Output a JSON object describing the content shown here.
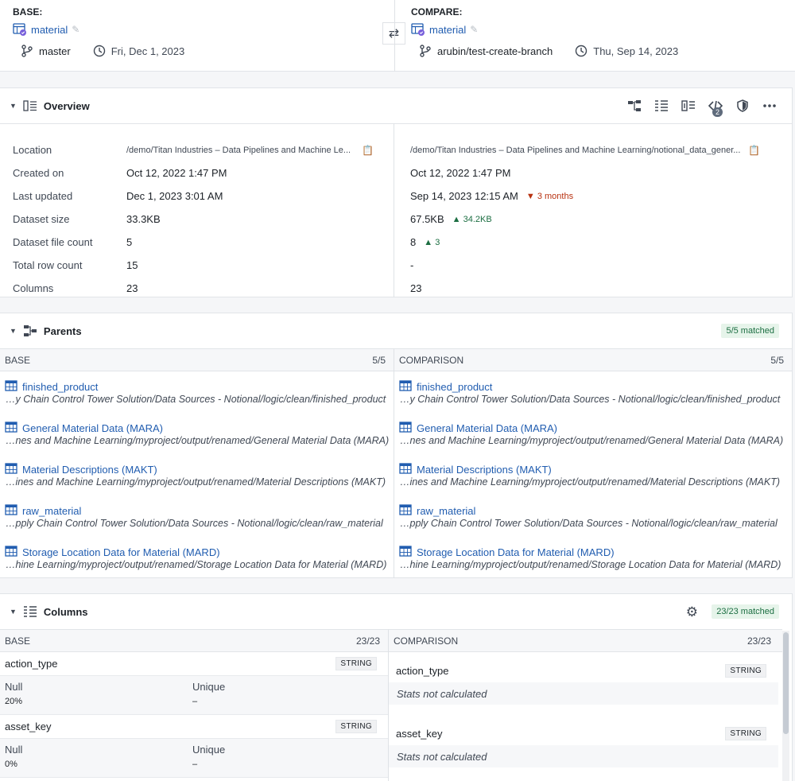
{
  "header": {
    "base": {
      "label": "BASE:",
      "dataset": "material",
      "branch": "master",
      "date": "Fri, Dec 1, 2023"
    },
    "compare": {
      "label": "COMPARE:",
      "dataset": "material",
      "branch": "arubin/test-create-branch",
      "date": "Thu, Sep 14, 2023"
    }
  },
  "overview": {
    "title": "Overview",
    "tool_badge": "2",
    "rows": [
      {
        "label": "Location",
        "base": "/demo/Titan Industries – Data Pipelines and Machine Le...",
        "compare": "/demo/Titan Industries – Data Pipelines and Machine Learning/notional_data_gener...",
        "delta": "",
        "dir": ""
      },
      {
        "label": "Created on",
        "base": "Oct 12, 2022 1:47 PM",
        "compare": "Oct 12, 2022 1:47 PM",
        "delta": "",
        "dir": ""
      },
      {
        "label": "Last updated",
        "base": "Dec 1, 2023 3:01 AM",
        "compare": "Sep 14, 2023 12:15 AM",
        "delta": "3 months",
        "dir": "down"
      },
      {
        "label": "Dataset size",
        "base": "33.3KB",
        "compare": "67.5KB",
        "delta": "34.2KB",
        "dir": "up"
      },
      {
        "label": "Dataset file count",
        "base": "5",
        "compare": "8",
        "delta": "3",
        "dir": "up"
      },
      {
        "label": "Total row count",
        "base": "15",
        "compare": "-",
        "delta": "",
        "dir": ""
      },
      {
        "label": "Columns",
        "base": "23",
        "compare": "23",
        "delta": "",
        "dir": ""
      }
    ]
  },
  "parents": {
    "title": "Parents",
    "badge": "5/5 matched",
    "base_header": "BASE",
    "base_count": "5/5",
    "cmp_header": "COMPARISON",
    "cmp_count": "5/5",
    "items": [
      {
        "name": "finished_product",
        "path": "…y Chain Control Tower Solution/Data Sources - Notional/logic/clean/finished_product"
      },
      {
        "name": "General Material Data (MARA)",
        "path": "…nes and Machine Learning/myproject/output/renamed/General Material Data (MARA)"
      },
      {
        "name": "Material Descriptions (MAKT)",
        "path": "…ines and Machine Learning/myproject/output/renamed/Material Descriptions (MAKT)"
      },
      {
        "name": "raw_material",
        "path": "…pply Chain Control Tower Solution/Data Sources - Notional/logic/clean/raw_material"
      },
      {
        "name": "Storage Location Data for Material (MARD)",
        "path": "…hine Learning/myproject/output/renamed/Storage Location Data for Material (MARD)"
      }
    ]
  },
  "columns": {
    "title": "Columns",
    "badge": "23/23 matched",
    "base_header": "BASE",
    "base_count": "23/23",
    "cmp_header": "COMPARISON",
    "cmp_count": "23/23",
    "null_label": "Null",
    "unique_label": "Unique",
    "no_stats": "Stats not calculated",
    "items": [
      {
        "name": "action_type",
        "type": "STRING",
        "null": "20%",
        "unique": "–"
      },
      {
        "name": "asset_key",
        "type": "STRING",
        "null": "0%",
        "unique": "–"
      }
    ]
  }
}
